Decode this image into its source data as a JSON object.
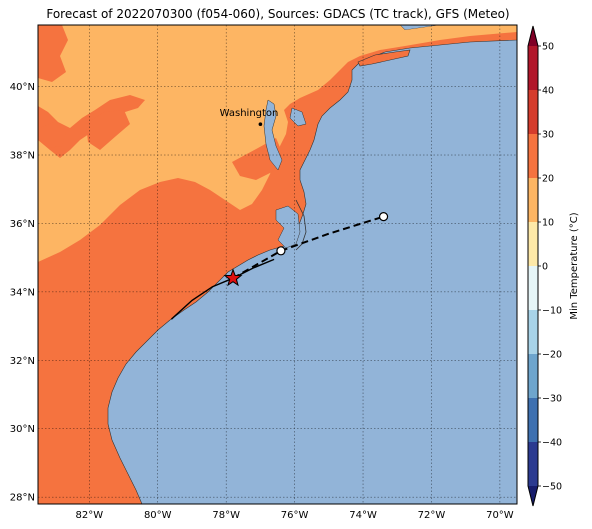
{
  "title": "Forecast of 2022070300 (f054-060), Sources: GDACS (TC track), GFS (Meteo)",
  "map": {
    "lon_range": [
      -83.5,
      -69.5
    ],
    "lat_range": [
      27.8,
      41.8
    ],
    "lon_ticks": [
      {
        "value": -82,
        "label": "82°W"
      },
      {
        "value": -80,
        "label": "80°W"
      },
      {
        "value": -78,
        "label": "78°W"
      },
      {
        "value": -76,
        "label": "76°W"
      },
      {
        "value": -74,
        "label": "74°W"
      },
      {
        "value": -72,
        "label": "72°W"
      },
      {
        "value": -70,
        "label": "70°W"
      }
    ],
    "lat_ticks": [
      {
        "value": 28,
        "label": "28°N"
      },
      {
        "value": 30,
        "label": "30°N"
      },
      {
        "value": 32,
        "label": "32°N"
      },
      {
        "value": 34,
        "label": "34°N"
      },
      {
        "value": 36,
        "label": "36°N"
      },
      {
        "value": 38,
        "label": "38°N"
      },
      {
        "value": 40,
        "label": "40°N"
      }
    ],
    "gridlines": true,
    "colors": {
      "ocean": "#92b4d8",
      "land_10_20": "#f5733f",
      "land_20_30": "#fdb563",
      "coast": "#333333"
    },
    "city": {
      "name": "Washington",
      "lon": -77.0,
      "lat": 38.9
    },
    "storm_position": {
      "lon": -77.8,
      "lat": 34.4
    },
    "past_track": [
      [
        -79.6,
        33.2
      ],
      [
        -79.0,
        33.75
      ],
      [
        -78.4,
        34.15
      ],
      [
        -77.8,
        34.4
      ],
      [
        -77.2,
        34.7
      ],
      [
        -76.6,
        34.95
      ]
    ],
    "forecast_track": [
      [
        -77.8,
        34.4
      ],
      [
        -76.4,
        35.2
      ],
      [
        -75.0,
        35.7
      ],
      [
        -73.4,
        36.2
      ]
    ],
    "forecast_points": [
      [
        -76.4,
        35.2
      ],
      [
        -73.4,
        36.2
      ]
    ]
  },
  "colorbar": {
    "label": "Min Temperature (°C)",
    "ticks": [
      "50",
      "40",
      "30",
      "20",
      "10",
      "0",
      "−10",
      "−20",
      "−30",
      "−40",
      "−50"
    ],
    "colors": [
      "#67001f",
      "#b2182b",
      "#d6604d",
      "#f4a582",
      "#fddbc7",
      "#fff7ec",
      "#d1e5f0",
      "#92c5de",
      "#4393c3",
      "#2166ac",
      "#1a1a80"
    ],
    "bands": [
      "#7f0025",
      "#b1172a",
      "#d43c2c",
      "#f5733f",
      "#fdb563",
      "#fee9a8",
      "#e6f5f7",
      "#a8d3e8",
      "#6ea5cd",
      "#3e70b0",
      "#2b3a90",
      "#161c6b"
    ]
  }
}
